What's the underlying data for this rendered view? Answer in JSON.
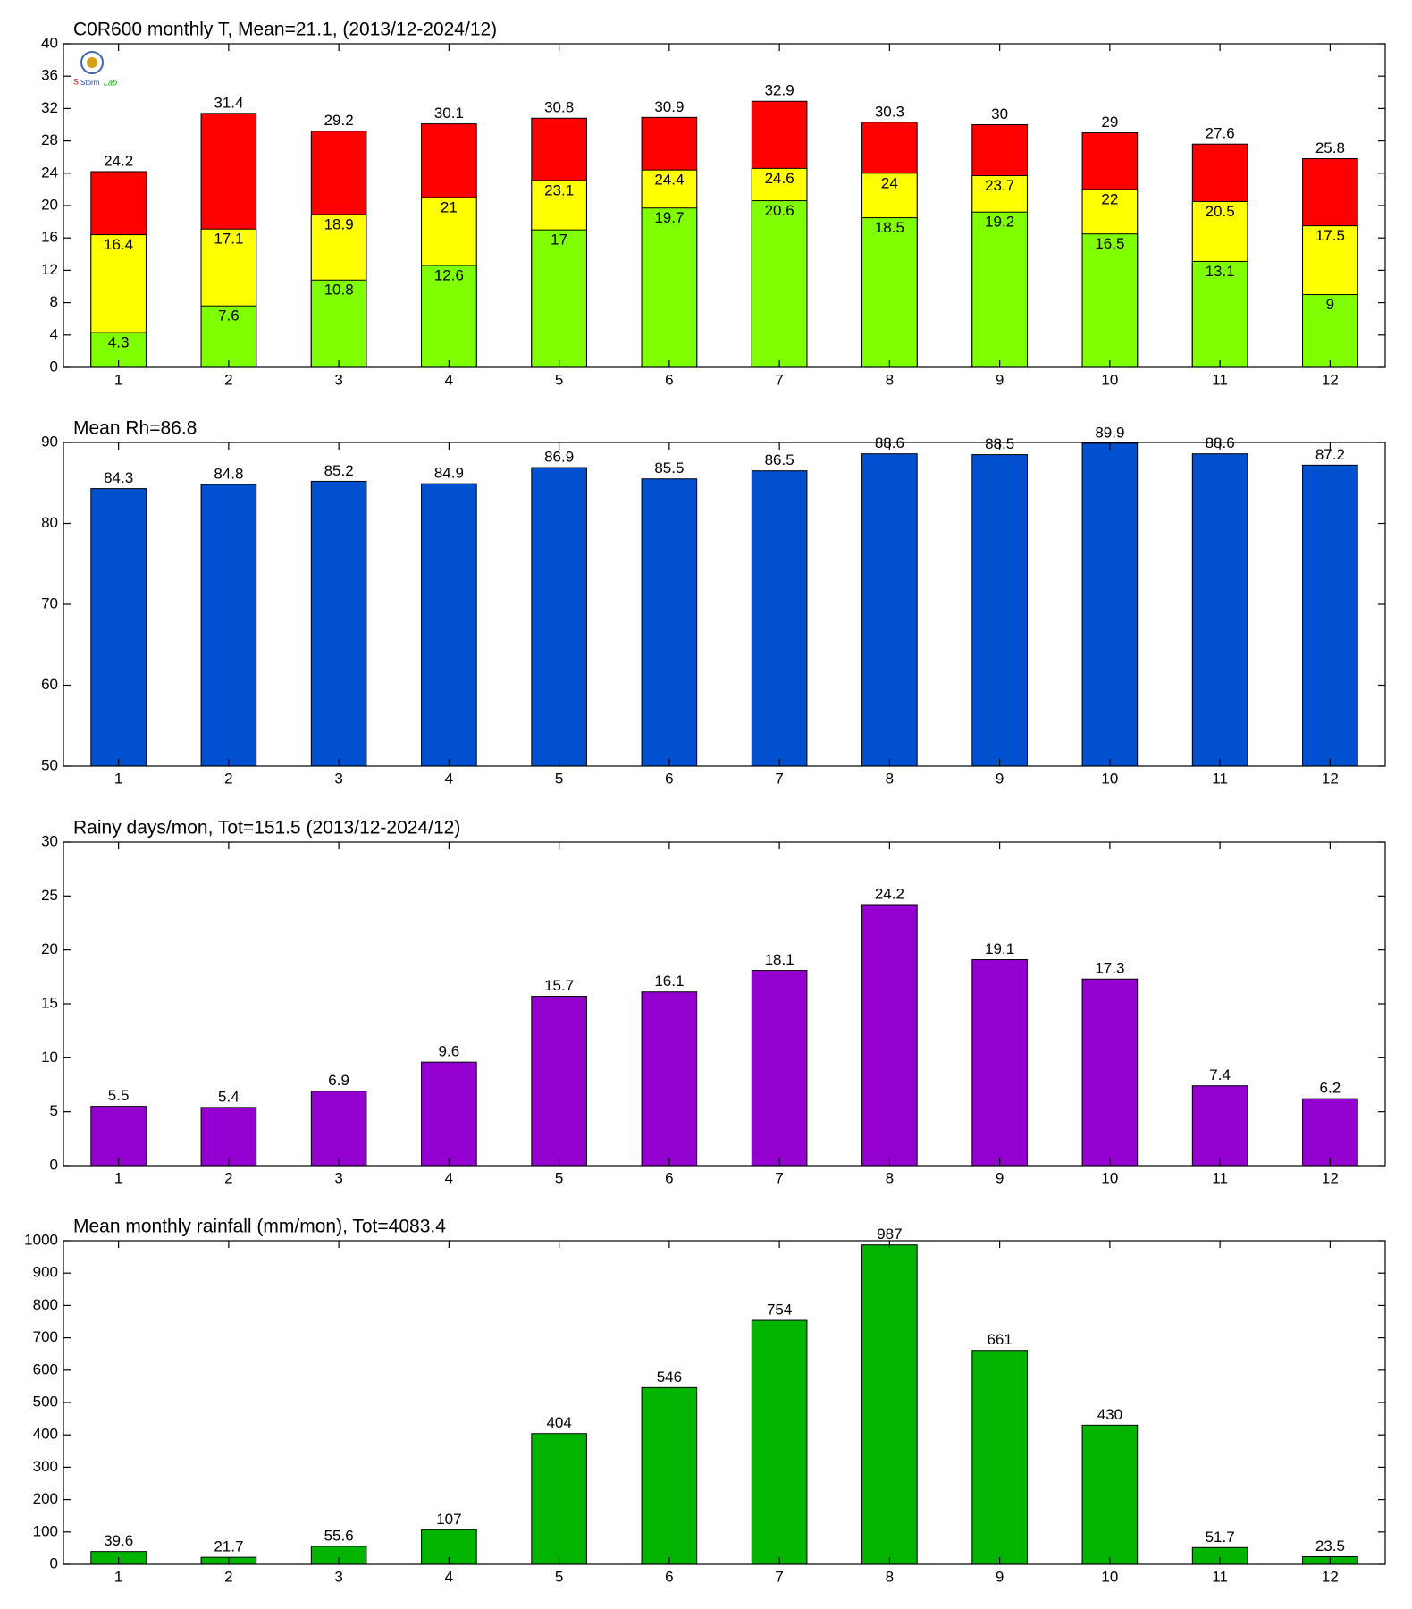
{
  "chart_data": [
    {
      "type": "bar",
      "title": "C0R600 monthly T, Mean=21.1, (2013/12-2024/12)",
      "categories": [
        "1",
        "2",
        "3",
        "4",
        "5",
        "6",
        "7",
        "8",
        "9",
        "10",
        "11",
        "12"
      ],
      "series": [
        {
          "color": "#80ff00",
          "values": [
            4.3,
            7.6,
            10.8,
            12.6,
            17,
            19.7,
            20.6,
            18.5,
            19.2,
            16.5,
            13.1,
            9
          ]
        },
        {
          "color": "#ffff00",
          "values": [
            16.4,
            17.1,
            18.9,
            21,
            23.1,
            24.4,
            24.6,
            24,
            23.7,
            22,
            20.5,
            17.5
          ]
        },
        {
          "color": "#ff0000",
          "values": [
            24.2,
            31.4,
            29.2,
            30.1,
            30.8,
            30.9,
            32.9,
            30.3,
            30,
            29,
            27.6,
            25.8
          ]
        }
      ],
      "ylim": [
        0,
        40
      ],
      "yticks": [
        0,
        4,
        8,
        12,
        16,
        20,
        24,
        28,
        32,
        36,
        40
      ]
    },
    {
      "type": "bar",
      "title": "Mean Rh=86.8",
      "categories": [
        "1",
        "2",
        "3",
        "4",
        "5",
        "6",
        "7",
        "8",
        "9",
        "10",
        "11",
        "12"
      ],
      "series": [
        {
          "color": "#0050d0",
          "values": [
            84.3,
            84.8,
            85.2,
            84.9,
            86.9,
            85.5,
            86.5,
            88.6,
            88.5,
            89.9,
            88.6,
            87.2
          ]
        }
      ],
      "ylim": [
        50,
        90
      ],
      "yticks": [
        50,
        60,
        70,
        80,
        90
      ]
    },
    {
      "type": "bar",
      "title": "Rainy days/mon, Tot=151.5 (2013/12-2024/12)",
      "categories": [
        "1",
        "2",
        "3",
        "4",
        "5",
        "6",
        "7",
        "8",
        "9",
        "10",
        "11",
        "12"
      ],
      "series": [
        {
          "color": "#9400d0",
          "values": [
            5.5,
            5.4,
            6.9,
            9.6,
            15.7,
            16.1,
            18.1,
            24.2,
            19.1,
            17.3,
            7.4,
            6.2
          ]
        }
      ],
      "ylim": [
        0,
        30
      ],
      "yticks": [
        0,
        5,
        10,
        15,
        20,
        25,
        30
      ]
    },
    {
      "type": "bar",
      "title": "Mean monthly rainfall (mm/mon), Tot=4083.4",
      "categories": [
        "1",
        "2",
        "3",
        "4",
        "5",
        "6",
        "7",
        "8",
        "9",
        "10",
        "11",
        "12"
      ],
      "series": [
        {
          "color": "#00b400",
          "values": [
            39.6,
            21.7,
            55.6,
            107,
            404,
            546,
            754,
            987,
            661,
            430,
            51.7,
            23.5
          ]
        }
      ],
      "ylim": [
        0,
        1000
      ],
      "yticks": [
        0,
        100,
        200,
        300,
        400,
        500,
        600,
        700,
        800,
        900,
        1000
      ]
    }
  ]
}
